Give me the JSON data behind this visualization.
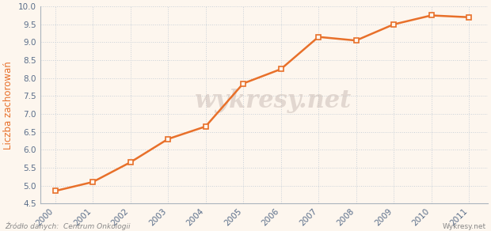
{
  "years": [
    2000,
    2001,
    2002,
    2003,
    2004,
    2005,
    2006,
    2007,
    2008,
    2009,
    2010,
    2011
  ],
  "values": [
    4.85,
    5.1,
    5.65,
    6.3,
    6.65,
    7.85,
    8.25,
    9.15,
    9.05,
    9.5,
    9.75,
    9.7
  ],
  "line_color": "#e8702a",
  "marker_color": "#e8702a",
  "marker_face": "#fdf6ee",
  "background_color": "#fdf6ee",
  "grid_color": "#c8d0d8",
  "ylabel": "Liczba zachorowań",
  "ylabel_color": "#e8702a",
  "ylim": [
    4.5,
    10.0
  ],
  "yticks": [
    4.5,
    5.0,
    5.5,
    6.0,
    6.5,
    7.0,
    7.5,
    8.0,
    8.5,
    9.0,
    9.5,
    10.0
  ],
  "source_text": "Źródło danych:  Centrum Onkologii",
  "watermark_text": "wykresy.net",
  "brand_text": "Wykresy.net",
  "tick_color": "#5a6e8a",
  "tick_fontsize": 7.5,
  "axis_color": "#aab4be"
}
